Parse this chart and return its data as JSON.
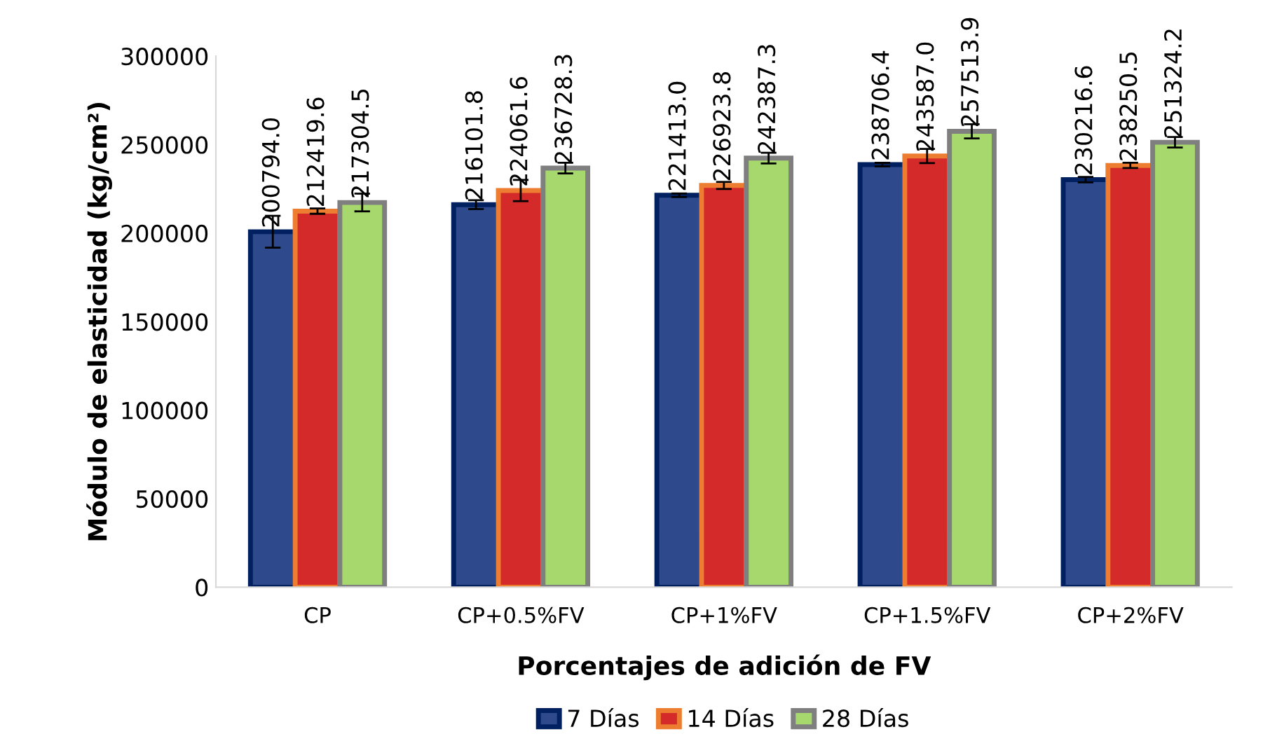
{
  "chart_data": {
    "type": "bar",
    "xlabel": "Porcentajes de adición de FV",
    "ylabel": "Módulo de elasticidad (kg/cm²)",
    "categories": [
      "CP",
      "CP+0.5%FV",
      "CP+1%FV",
      "CP+1.5%FV",
      "CP+2%FV"
    ],
    "series": [
      {
        "name": "7 Días",
        "color": "#2e4a8c",
        "values": [
          200794.0,
          216101.8,
          221413.0,
          238706.4,
          230216.6
        ],
        "value_labels": [
          "200794.0",
          "216101.8",
          "221413.0",
          "238706.4",
          "230216.6"
        ],
        "errors": [
          9000,
          2500,
          1000,
          1000,
          1500
        ]
      },
      {
        "name": "14 Días",
        "color": "#d42a2a",
        "values": [
          212419.6,
          224061.6,
          226923.8,
          243587.0,
          238250.5
        ],
        "value_labels": [
          "212419.6",
          "224061.6",
          "226923.8",
          "243587.0",
          "238250.5"
        ],
        "errors": [
          1500,
          6000,
          2000,
          4000,
          1500
        ]
      },
      {
        "name": "28 Días",
        "color": "#a6d86e",
        "values": [
          217304.5,
          236728.3,
          242387.3,
          257513.9,
          251324.2
        ],
        "value_labels": [
          "217304.5",
          "236728.3",
          "242387.3",
          "257513.9",
          "251324.2"
        ],
        "errors": [
          5000,
          3000,
          3000,
          4000,
          3000
        ]
      }
    ],
    "ylim": [
      0,
      300000
    ],
    "yticks": [
      0,
      50000,
      100000,
      150000,
      200000,
      250000,
      300000
    ],
    "grid": false,
    "legend": "bottom"
  }
}
